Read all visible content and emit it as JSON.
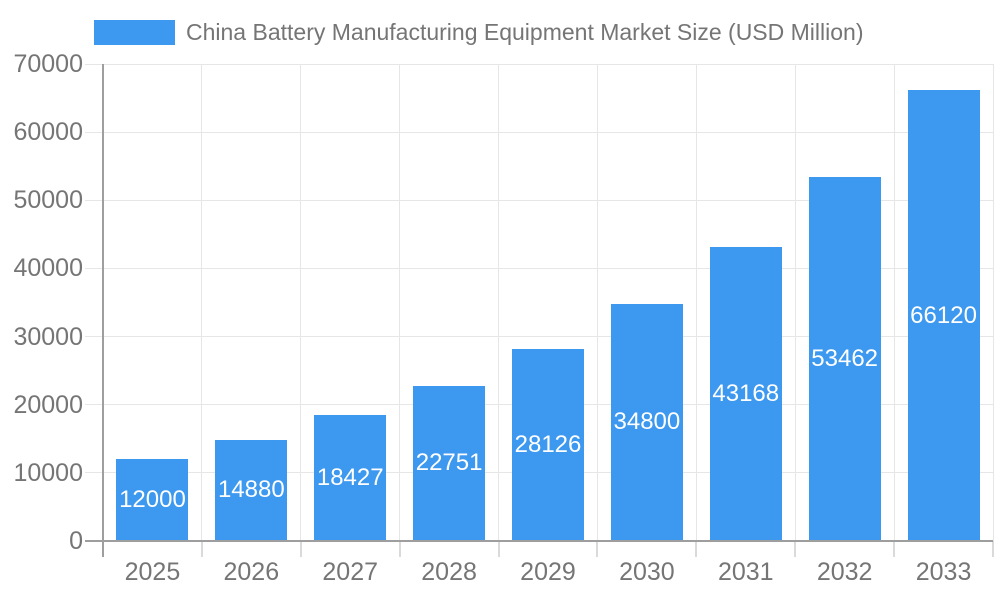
{
  "legend": {
    "label": "China Battery Manufacturing Equipment Market Size (USD Million)"
  },
  "chart_data": {
    "type": "bar",
    "title": "China Battery Manufacturing Equipment Market Size (USD Million)",
    "categories": [
      "2025",
      "2026",
      "2027",
      "2028",
      "2029",
      "2030",
      "2031",
      "2032",
      "2033"
    ],
    "values": [
      12000,
      14880,
      18427,
      22751,
      28126,
      34800,
      43168,
      53462,
      66120
    ],
    "xlabel": "",
    "ylabel": "",
    "ylim": [
      0,
      70000
    ],
    "yticks": [
      0,
      10000,
      20000,
      30000,
      40000,
      50000,
      60000,
      70000
    ],
    "grid": true,
    "legend_position": "top",
    "bar_color": "#3D98EF",
    "value_label_color": "#FFFFFF",
    "axis_text_color": "#757575",
    "gridline_color": "#E6E6E6",
    "axis_line_color": "#9E9E9E"
  }
}
